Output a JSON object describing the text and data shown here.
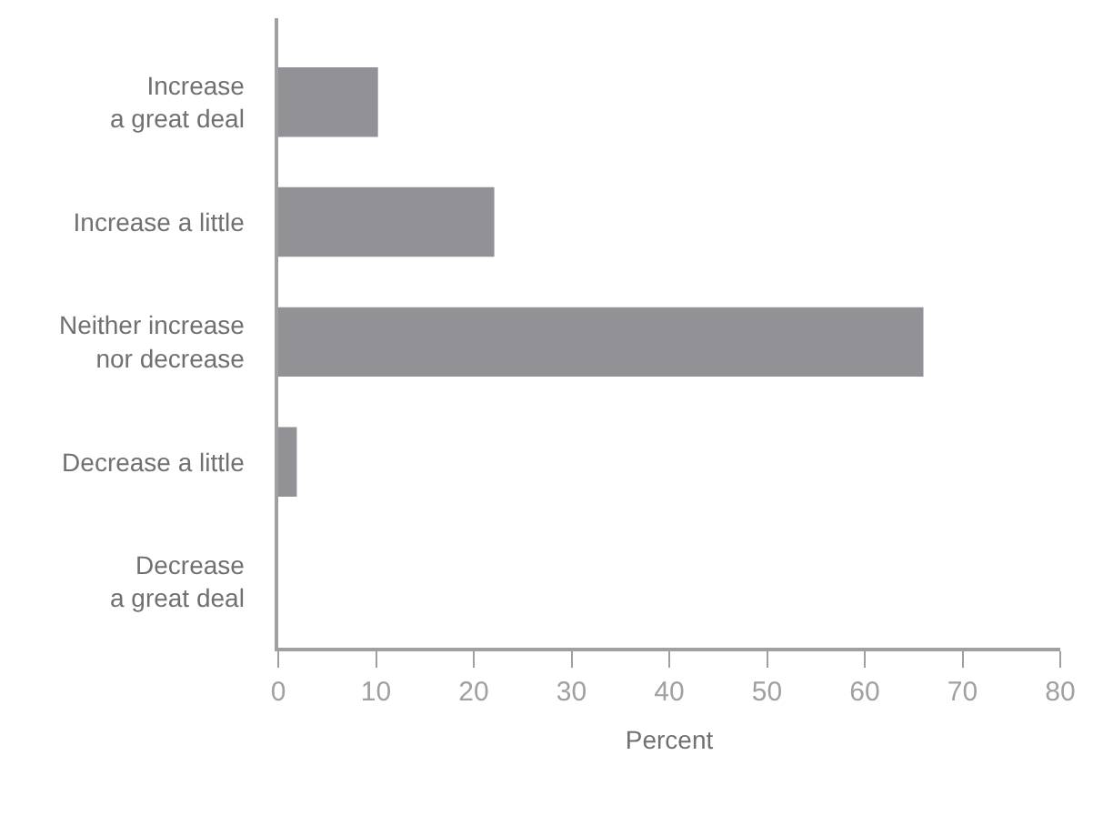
{
  "chart_data": {
    "type": "bar",
    "orientation": "horizontal",
    "xlabel": "Percent",
    "categories": [
      "Increase\na great deal",
      "Increase a little",
      "Neither increase\nnor decrease",
      "Decrease a little",
      "Decrease\na great deal"
    ],
    "values": [
      10.2,
      22.1,
      66.0,
      1.9,
      0
    ],
    "color": "#929196",
    "xlim": [
      0,
      80
    ],
    "xticks": [
      0,
      10,
      20,
      30,
      40,
      50,
      60,
      70,
      80
    ]
  }
}
